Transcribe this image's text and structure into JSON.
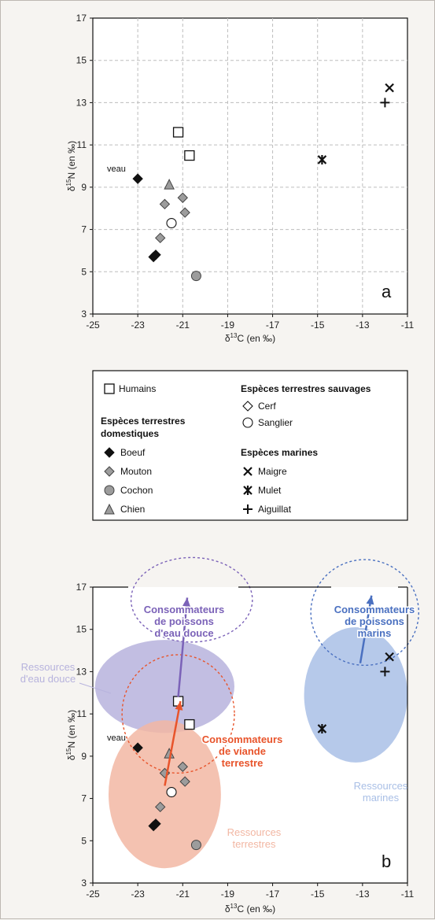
{
  "chart_data": [
    {
      "type": "scatter",
      "panel": "a",
      "xlabel_prefix": "δ",
      "xlabel_sup": "13",
      "xlabel_rest": "C (en ‰)",
      "ylabel_prefix": "δ",
      "ylabel_sup": "15",
      "ylabel_rest": "N (en ‰)",
      "xlim": [
        -25,
        -11
      ],
      "ylim": [
        3,
        17
      ],
      "xticks": [
        -25,
        -23,
        -21,
        -19,
        -17,
        -15,
        -13,
        -11
      ],
      "yticks": [
        3,
        5,
        7,
        9,
        11,
        13,
        15,
        17
      ],
      "grid": true,
      "series": [
        {
          "name": "Humains",
          "marker": "square-open",
          "x": [
            -21.2,
            -20.7
          ],
          "y": [
            11.6,
            10.5
          ]
        },
        {
          "name": "Boeuf",
          "marker": "diamond-filled-black",
          "x": [
            -23.0,
            -22.3,
            -22.2
          ],
          "y": [
            9.4,
            5.7,
            5.8
          ]
        },
        {
          "name": "Mouton",
          "marker": "diamond-filled-gray",
          "x": [
            -21.8,
            -22.0,
            -21.0,
            -20.9
          ],
          "y": [
            8.2,
            6.6,
            8.5,
            7.8
          ]
        },
        {
          "name": "Cochon",
          "marker": "circle-filled-gray",
          "x": [
            -20.4
          ],
          "y": [
            4.8
          ]
        },
        {
          "name": "Chien",
          "marker": "triangle-filled-gray",
          "x": [
            -21.6
          ],
          "y": [
            9.1
          ]
        },
        {
          "name": "Cerf",
          "marker": "diamond-open",
          "x": [],
          "y": []
        },
        {
          "name": "Sanglier",
          "marker": "circle-open",
          "x": [
            -21.5
          ],
          "y": [
            7.3
          ]
        },
        {
          "name": "Maigre",
          "marker": "x",
          "x": [
            -11.8
          ],
          "y": [
            13.7
          ]
        },
        {
          "name": "Mulet",
          "marker": "asterisk",
          "x": [
            -14.8
          ],
          "y": [
            10.3
          ]
        },
        {
          "name": "Aiguillat",
          "marker": "plus",
          "x": [
            -12.0
          ],
          "y": [
            13.0
          ]
        }
      ],
      "annotations": [
        {
          "text": "veau",
          "x": -23.0,
          "y": 9.4
        }
      ]
    },
    {
      "type": "scatter",
      "panel": "b",
      "xlabel_prefix": "δ",
      "xlabel_sup": "13",
      "xlabel_rest": "C (en ‰)",
      "ylabel_prefix": "δ",
      "ylabel_sup": "15",
      "ylabel_rest": "N (en ‰)",
      "xlim": [
        -25,
        -11
      ],
      "ylim": [
        3,
        17
      ],
      "xticks": [
        -25,
        -23,
        -21,
        -19,
        -17,
        -15,
        -13,
        -11
      ],
      "yticks": [
        3,
        5,
        7,
        9,
        11,
        13,
        15,
        17
      ],
      "grid": false,
      "same_points_as_panel": "a",
      "regions": [
        {
          "label_lines": [
            "Ressources",
            "d'eau douce"
          ],
          "color": "#b7b3dd",
          "cx": -21.8,
          "cy": 12.3,
          "rx": 3.1,
          "ry": 2.2,
          "style": "filled"
        },
        {
          "label_lines": [
            "Ressources",
            "terrestres"
          ],
          "color": "#f2b7a3",
          "cx": -21.8,
          "cy": 7.2,
          "rx": 2.5,
          "ry": 3.5,
          "style": "filled"
        },
        {
          "label_lines": [
            "Ressources",
            "marines"
          ],
          "color": "#a9bfe6",
          "cx": -13.3,
          "cy": 11.9,
          "rx": 2.3,
          "ry": 3.2,
          "style": "filled"
        },
        {
          "label_lines": [
            "Consommateurs",
            "de poissons",
            "d'eau douce"
          ],
          "color": "#7b62b8",
          "cx": -20.6,
          "cy": 16.4,
          "rx": 2.7,
          "ry": 2.0,
          "style": "dashed"
        },
        {
          "label_lines": [
            "Consommateurs",
            "de viande",
            "terrestre"
          ],
          "color": "#e8542b",
          "cx": -21.2,
          "cy": 11.0,
          "rx": 2.5,
          "ry": 2.8,
          "style": "dashed"
        },
        {
          "label_lines": [
            "Consommateurs",
            "de poissons",
            "marins"
          ],
          "color": "#4a70c0",
          "cx": -12.9,
          "cy": 15.8,
          "rx": 2.4,
          "ry": 2.5,
          "style": "dashed"
        }
      ],
      "arrows": [
        {
          "color": "#7b62b8",
          "from": [
            -21.2,
            11.8
          ],
          "to": [
            -20.8,
            16.5
          ]
        },
        {
          "color": "#e8542b",
          "from": [
            -21.8,
            7.6
          ],
          "to": [
            -21.1,
            11.6
          ]
        },
        {
          "color": "#4a70c0",
          "from": [
            -13.1,
            13.4
          ],
          "to": [
            -12.6,
            16.6
          ]
        }
      ]
    }
  ],
  "legend": {
    "humains": "Humains",
    "domestic_heading_1": "Espèces terrestres",
    "domestic_heading_2": "domestiques",
    "boeuf": "Boeuf",
    "mouton": "Mouton",
    "cochon": "Cochon",
    "chien": "Chien",
    "wild_heading": "Espèces terrestres sauvages",
    "cerf": "Cerf",
    "sanglier": "Sanglier",
    "marine_heading": "Espèces marines",
    "maigre": "Maigre",
    "mulet": "Mulet",
    "aiguillat": "Aiguillat"
  },
  "colors": {
    "background": "#f6f4f1",
    "black_marker": "#111111",
    "gray_marker": "#9c9c9c"
  }
}
